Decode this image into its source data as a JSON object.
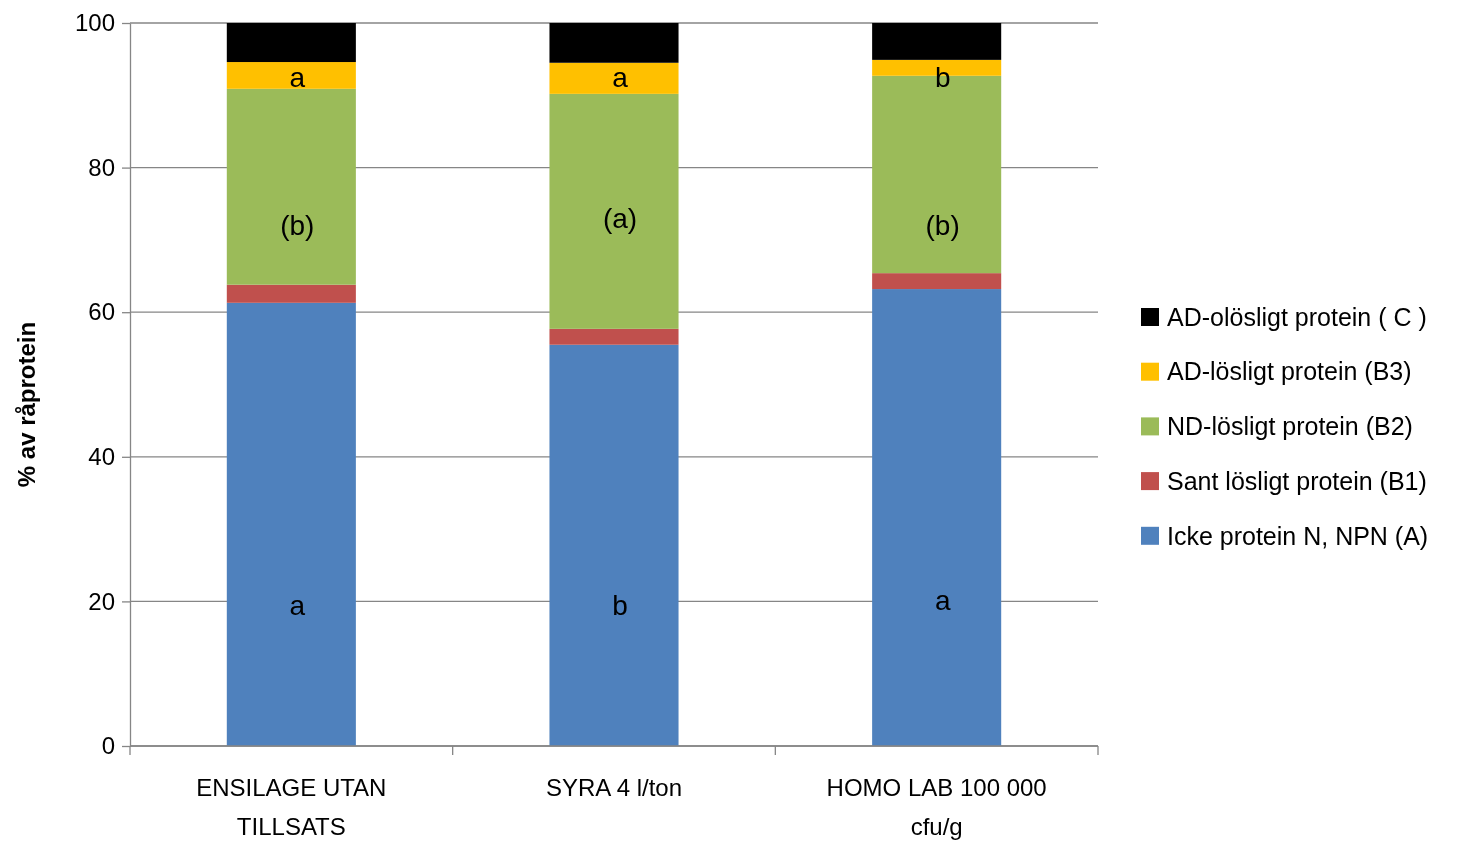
{
  "chart_data": {
    "type": "bar",
    "stacked": true,
    "ylabel": "% av råprotein",
    "categories": [
      "ENSILAGE UTAN TILLSATS",
      "SYRA 4 l/ton",
      "HOMO LAB 100 000 cfu/g"
    ],
    "series": [
      {
        "name": "Icke protein N, NPN (A)",
        "color": "#4f81bd",
        "values": [
          61.3,
          55.5,
          63.2
        ]
      },
      {
        "name": "Sant lösligt protein (B1)",
        "color": "#c0504d",
        "values": [
          2.5,
          2.2,
          2.2
        ]
      },
      {
        "name": "ND-lösligt protein (B2)",
        "color": "#9bbb59",
        "values": [
          27.1,
          32.5,
          27.3
        ]
      },
      {
        "name": "AD-lösligt protein (B3)",
        "color": "#ffc000",
        "values": [
          3.7,
          4.3,
          2.2
        ]
      },
      {
        "name": "AD-olösligt protein ( C )",
        "color": "#000000",
        "values": [
          5.4,
          5.5,
          5.1
        ]
      }
    ],
    "ylim": [
      0,
      100
    ],
    "yticks": [
      0,
      20,
      40,
      60,
      80,
      100
    ],
    "grid": "y",
    "legend": "right",
    "annotations": [
      "a",
      "(b)",
      "a",
      "b",
      "(a)",
      "a",
      "a",
      "(b)",
      "b"
    ]
  }
}
